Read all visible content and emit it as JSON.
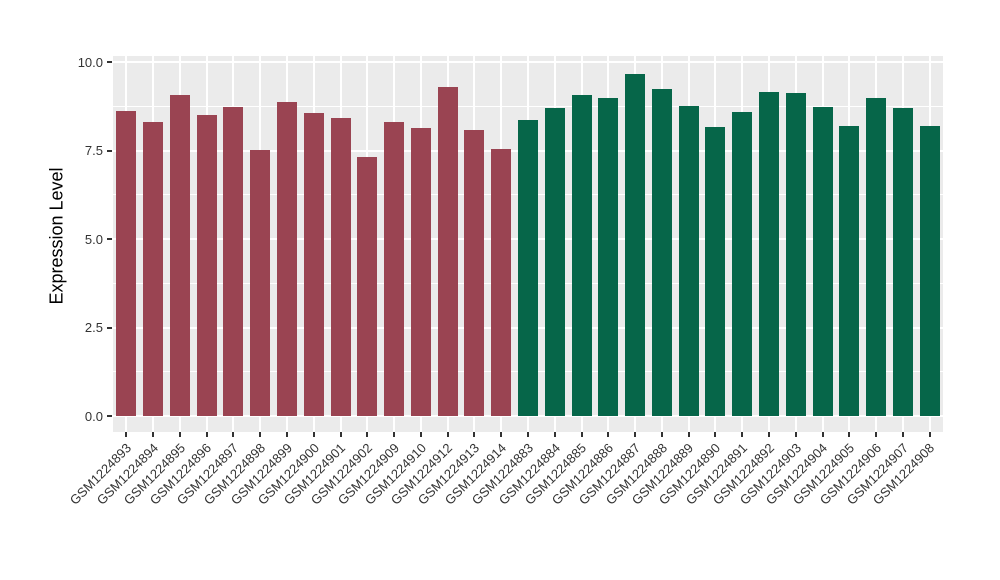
{
  "chart_data": {
    "type": "bar",
    "title": "",
    "xlabel": "",
    "ylabel": "Expression Level",
    "ylim": [
      0,
      10.17
    ],
    "yticks": [
      0.0,
      2.5,
      5.0,
      7.5,
      10.0
    ],
    "ytick_labels": [
      "0.0",
      "2.5",
      "5.0",
      "7.5",
      "10.0"
    ],
    "ytick_minor": [
      1.25,
      3.75,
      6.25,
      8.75
    ],
    "grid": true,
    "legend_position": "none",
    "panel_background_color": "#EBEBEB",
    "gridline_color": "#FFFFFF",
    "tick_color": "#333333",
    "groups": [
      {
        "color": "#9A4452",
        "samples": [
          "GSM1224893",
          "GSM1224894",
          "GSM1224895",
          "GSM1224896",
          "GSM1224897",
          "GSM1224898",
          "GSM1224899",
          "GSM1224900",
          "GSM1224901",
          "GSM1224902",
          "GSM1224909",
          "GSM1224910",
          "GSM1224912",
          "GSM1224913",
          "GSM1224914"
        ],
        "values": [
          8.62,
          8.31,
          9.07,
          8.5,
          8.74,
          7.51,
          8.87,
          8.55,
          8.42,
          7.32,
          8.31,
          8.14,
          9.29,
          8.08,
          7.54
        ]
      },
      {
        "color": "#066649",
        "samples": [
          "GSM1224883",
          "GSM1224884",
          "GSM1224885",
          "GSM1224886",
          "GSM1224887",
          "GSM1224888",
          "GSM1224889",
          "GSM1224890",
          "GSM1224891",
          "GSM1224892",
          "GSM1224903",
          "GSM1224904",
          "GSM1224905",
          "GSM1224906",
          "GSM1224907",
          "GSM1224908"
        ],
        "values": [
          8.36,
          8.71,
          9.08,
          8.99,
          9.67,
          9.25,
          8.76,
          8.16,
          8.58,
          9.15,
          9.12,
          8.74,
          8.19,
          8.98,
          8.7,
          8.2
        ]
      }
    ]
  }
}
